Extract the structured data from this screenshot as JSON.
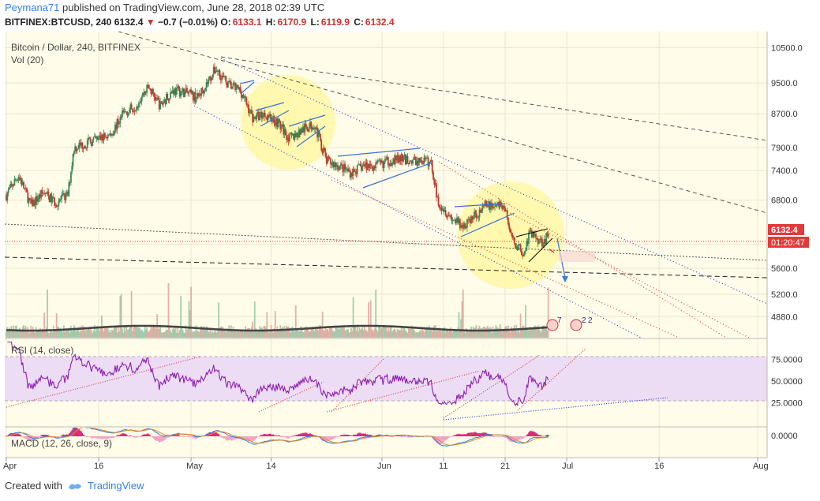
{
  "header": {
    "author": "Peymana71",
    "published_text": "published on TradingView.com, June 28, 2018 02:39 UTC",
    "symbol": "BITFINEX:BTCUSD, 240",
    "last": "6132.4",
    "arrow": "▼",
    "change": "−0.7 (−0.01%)",
    "open_label": "O:",
    "open": "6133.1",
    "high_label": "H:",
    "high": "6170.9",
    "low_label": "L:",
    "low": "6119.9",
    "close_label": "C:",
    "close": "6132.4"
  },
  "legend": {
    "main": "Bitcoin / Dollar, 240, BITFINEX",
    "volume": "Vol (20)",
    "rsi": "RSI (14, close)",
    "macd": "MACD (12, 26, close, 9)"
  },
  "price_badges": {
    "price": "6132.4",
    "countdown": "01:20:47"
  },
  "events": {
    "flag1": "7",
    "flag2": "2",
    "flag3": "2"
  },
  "footer": {
    "created_with": "Created with",
    "brand": "TradingView"
  },
  "colors": {
    "up": "#a84a4a",
    "down": "#b04040",
    "rsi_line": "#8e1fb0",
    "rsi_band": "#e9d8f5",
    "channel_blue": "#2b3dd6",
    "channel_red": "#e23a3a",
    "highlight": "#fff6a0",
    "background": "#fffce9"
  },
  "chart_data": {
    "type": "candlestick",
    "title": "Bitcoin / Dollar, 240, BITFINEX",
    "x_ticks": [
      "Apr",
      "16",
      "May",
      "14",
      "Jun",
      "11",
      "21",
      "Jul",
      "16",
      "Aug"
    ],
    "price_axis": {
      "ticks": [
        "10500.0",
        "9500.0",
        "8700.0",
        "7900.0",
        "7400.0",
        "6800.0",
        "6000.0",
        "5600.0",
        "5200.0",
        "4880.0"
      ],
      "scale": "log",
      "range": [
        4700,
        10800
      ]
    },
    "rsi_axis": {
      "ticks": [
        "75.0000",
        "50.0000",
        "25.0000"
      ],
      "range": [
        0,
        100
      ],
      "band": [
        30,
        70
      ]
    },
    "macd_axis": {
      "ticks": [
        "0.0000"
      ]
    },
    "price_path": [
      [
        "Apr 1",
        6900
      ],
      [
        "Apr 3",
        7300
      ],
      [
        "Apr 5",
        6700
      ],
      [
        "Apr 7",
        6950
      ],
      [
        "Apr 9",
        6750
      ],
      [
        "Apr 11",
        6900
      ],
      [
        "Apr 12",
        7900
      ],
      [
        "Apr 14",
        8000
      ],
      [
        "Apr 16",
        8100
      ],
      [
        "Apr 18",
        8200
      ],
      [
        "Apr 20",
        8700
      ],
      [
        "Apr 22",
        8900
      ],
      [
        "Apr 24",
        9400
      ],
      [
        "Apr 26",
        8900
      ],
      [
        "Apr 28",
        9300
      ],
      [
        "Apr 30",
        9250
      ],
      [
        "May 2",
        9100
      ],
      [
        "May 4",
        9600
      ],
      [
        "May 5",
        9900
      ],
      [
        "May 7",
        9450
      ],
      [
        "May 9",
        9300
      ],
      [
        "May 11",
        8600
      ],
      [
        "May 13",
        8700
      ],
      [
        "May 15",
        8500
      ],
      [
        "May 17",
        8100
      ],
      [
        "May 19",
        8300
      ],
      [
        "May 21",
        8450
      ],
      [
        "May 23",
        7600
      ],
      [
        "May 25",
        7500
      ],
      [
        "May 27",
        7350
      ],
      [
        "May 29",
        7500
      ],
      [
        "May 31",
        7500
      ],
      [
        "Jun 2",
        7600
      ],
      [
        "Jun 4",
        7650
      ],
      [
        "Jun 6",
        7600
      ],
      [
        "Jun 8",
        7600
      ],
      [
        "Jun 9",
        7550
      ],
      [
        "Jun 10",
        6800
      ],
      [
        "Jun 12",
        6500
      ],
      [
        "Jun 14",
        6300
      ],
      [
        "Jun 16",
        6500
      ],
      [
        "Jun 18",
        6700
      ],
      [
        "Jun 20",
        6700
      ],
      [
        "Jun 21",
        6650
      ],
      [
        "Jun 22",
        6100
      ],
      [
        "Jun 24",
        5850
      ],
      [
        "Jun 25",
        6200
      ],
      [
        "Jun 27",
        6050
      ],
      [
        "Jun 28",
        6132
      ]
    ],
    "current_price": 6132.4,
    "projection_target": 5650
  }
}
